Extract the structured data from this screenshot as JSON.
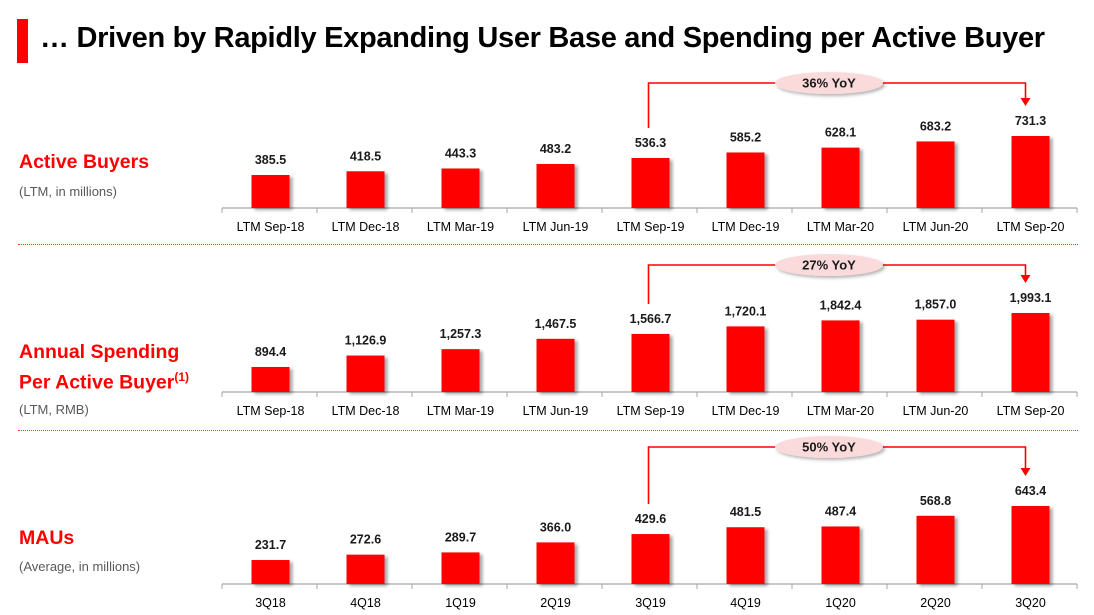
{
  "header": {
    "title": "… Driven by Rapidly Expanding User Base and Spending per Active Buyer"
  },
  "colors": {
    "bar": "#ff0000",
    "accent": "#ff0000",
    "annotation_fill": "#fadada",
    "axis": "#a6a6a6"
  },
  "sections": [
    {
      "label": "Active Buyers",
      "sublabel": "(LTM, in millions)"
    },
    {
      "label_line1": "Annual Spending",
      "label_line2": "Per Active Buyer",
      "footnote": "(1)",
      "sublabel": "(LTM, RMB)"
    },
    {
      "label": "MAUs",
      "sublabel": "(Average, in millions)"
    }
  ],
  "chart_data": [
    {
      "type": "bar",
      "title": "Active Buyers",
      "ylabel": "(LTM, in millions)",
      "categories": [
        "LTM Sep-18",
        "LTM Dec-18",
        "LTM Mar-19",
        "LTM Jun-19",
        "LTM Sep-19",
        "LTM Dec-19",
        "LTM Mar-20",
        "LTM Jun-20",
        "LTM Sep-20"
      ],
      "values": [
        385.5,
        418.5,
        443.3,
        483.2,
        536.3,
        585.2,
        628.1,
        683.2,
        731.3
      ],
      "value_labels": [
        "385.5",
        "418.5",
        "443.3",
        "483.2",
        "536.3",
        "585.2",
        "628.1",
        "683.2",
        "731.3"
      ],
      "ylim": [
        93,
        731.3
      ],
      "grid": false,
      "annotation": {
        "text": "36% YoY",
        "from_index": 4,
        "to_index": 8
      }
    },
    {
      "type": "bar",
      "title": "Annual Spending Per Active Buyer(1)",
      "ylabel": "(LTM, RMB)",
      "categories": [
        "LTM Sep-18",
        "LTM Dec-18",
        "LTM Mar-19",
        "LTM Jun-19",
        "LTM Sep-19",
        "LTM Dec-19",
        "LTM Mar-20",
        "LTM Jun-20",
        "LTM Sep-20"
      ],
      "values": [
        894.4,
        1126.9,
        1257.3,
        1467.5,
        1566.7,
        1720.1,
        1842.4,
        1857.0,
        1993.1
      ],
      "value_labels": [
        "894.4",
        "1,126.9",
        "1,257.3",
        "1,467.5",
        "1,566.7",
        "1,720.1",
        "1,842.4",
        "1,857.0",
        "1,993.1"
      ],
      "ylim": [
        385,
        1993.1
      ],
      "grid": false,
      "annotation": {
        "text": "27% YoY",
        "from_index": 4,
        "to_index": 8
      }
    },
    {
      "type": "bar",
      "title": "MAUs",
      "ylabel": "(Average, in millions)",
      "categories": [
        "3Q18",
        "4Q18",
        "1Q19",
        "2Q19",
        "3Q19",
        "4Q19",
        "1Q20",
        "2Q20",
        "3Q20"
      ],
      "values": [
        231.7,
        272.6,
        289.7,
        366.0,
        429.6,
        481.5,
        487.4,
        568.8,
        643.4
      ],
      "value_labels": [
        "231.7",
        "272.6",
        "289.7",
        "366.0",
        "429.6",
        "481.5",
        "487.4",
        "568.8",
        "643.4"
      ],
      "ylim": [
        49,
        643.4
      ],
      "grid": false,
      "annotation": {
        "text": "50% YoY",
        "from_index": 4,
        "to_index": 8
      }
    }
  ]
}
